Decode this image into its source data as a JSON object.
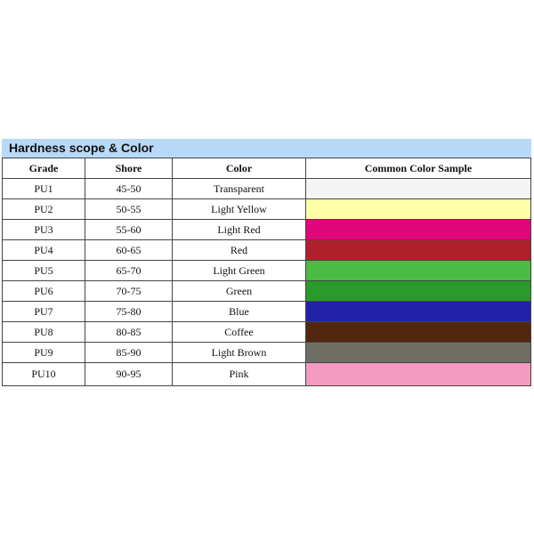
{
  "title": "Hardness scope & Color",
  "headers": [
    "Grade",
    "Shore",
    "Color",
    "Common Color Sample"
  ],
  "rows": [
    {
      "grade": "PU1",
      "shore": "45-50",
      "color": "Transparent",
      "swatch": "#f4f4f4"
    },
    {
      "grade": "PU2",
      "shore": "50-55",
      "color": "Light Yellow",
      "swatch": "#ffffaa"
    },
    {
      "grade": "PU3",
      "shore": "55-60",
      "color": "Light Red",
      "swatch": "#e0077a"
    },
    {
      "grade": "PU4",
      "shore": "60-65",
      "color": "Red",
      "swatch": "#b0202c"
    },
    {
      "grade": "PU5",
      "shore": "65-70",
      "color": "Light Green",
      "swatch": "#4cbb44"
    },
    {
      "grade": "PU6",
      "shore": "70-75",
      "color": "Green",
      "swatch": "#2a9a2a"
    },
    {
      "grade": "PU7",
      "shore": "75-80",
      "color": "Blue",
      "swatch": "#2222aa"
    },
    {
      "grade": "PU8",
      "shore": "80-85",
      "color": "Coffee",
      "swatch": "#53260f"
    },
    {
      "grade": "PU9",
      "shore": "85-90",
      "color": "Light Brown",
      "swatch": "#6e6e64"
    },
    {
      "grade": "PU10",
      "shore": "90-95",
      "color": "Pink",
      "swatch": "#f49ac0"
    }
  ]
}
